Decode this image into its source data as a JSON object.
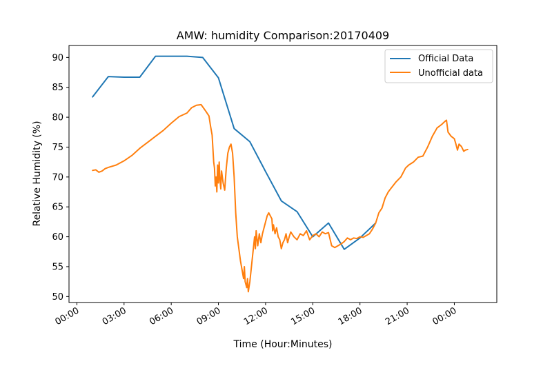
{
  "chart_data": {
    "type": "line",
    "title": "AMW: humidity Comparison:20170409",
    "xlabel": "Time (Hour:Minutes)",
    "ylabel": "Relative Humidity (%)",
    "xlim_hours": [
      -0.5,
      26.7
    ],
    "ylim": [
      49,
      92
    ],
    "grid": false,
    "legend_position": "top-right",
    "x_ticks": [
      {
        "hour": 0,
        "label": "00:00"
      },
      {
        "hour": 3,
        "label": "03:00"
      },
      {
        "hour": 6,
        "label": "06:00"
      },
      {
        "hour": 9,
        "label": "09:00"
      },
      {
        "hour": 12,
        "label": "12:00"
      },
      {
        "hour": 15,
        "label": "15:00"
      },
      {
        "hour": 18,
        "label": "18:00"
      },
      {
        "hour": 21,
        "label": "21:00"
      },
      {
        "hour": 24,
        "label": "00:00"
      }
    ],
    "y_ticks": [
      50,
      55,
      60,
      65,
      70,
      75,
      80,
      85,
      90
    ],
    "series": [
      {
        "name": "Official Data",
        "color": "#1f77b4",
        "points": [
          [
            1.0,
            83.4
          ],
          [
            2.0,
            86.8
          ],
          [
            3.0,
            86.7
          ],
          [
            4.0,
            86.7
          ],
          [
            5.0,
            90.2
          ],
          [
            6.0,
            90.2
          ],
          [
            7.0,
            90.2
          ],
          [
            8.0,
            90.0
          ],
          [
            9.0,
            86.6
          ],
          [
            10.0,
            78.1
          ],
          [
            11.0,
            75.9
          ],
          [
            12.0,
            70.9
          ],
          [
            13.0,
            66.0
          ],
          [
            14.0,
            64.2
          ],
          [
            15.0,
            60.0
          ],
          [
            16.0,
            62.3
          ],
          [
            17.0,
            57.9
          ],
          [
            18.0,
            59.8
          ],
          [
            19.0,
            62.3
          ]
        ]
      },
      {
        "name": "Unofficial data",
        "color": "#ff7f0e",
        "points": [
          [
            1.0,
            71.1
          ],
          [
            1.2,
            71.2
          ],
          [
            1.4,
            70.8
          ],
          [
            1.6,
            71.0
          ],
          [
            1.8,
            71.4
          ],
          [
            2.0,
            71.6
          ],
          [
            2.5,
            72.0
          ],
          [
            3.0,
            72.7
          ],
          [
            3.5,
            73.6
          ],
          [
            4.0,
            74.8
          ],
          [
            4.5,
            75.8
          ],
          [
            5.0,
            76.8
          ],
          [
            5.5,
            77.8
          ],
          [
            6.0,
            79.0
          ],
          [
            6.5,
            80.1
          ],
          [
            7.0,
            80.7
          ],
          [
            7.3,
            81.6
          ],
          [
            7.6,
            82.0
          ],
          [
            7.9,
            82.1
          ],
          [
            8.2,
            81.0
          ],
          [
            8.4,
            80.2
          ],
          [
            8.5,
            78.5
          ],
          [
            8.6,
            77.0
          ],
          [
            8.7,
            72.5
          ],
          [
            8.75,
            71.5
          ],
          [
            8.8,
            68.5
          ],
          [
            8.85,
            70.0
          ],
          [
            8.9,
            67.5
          ],
          [
            8.95,
            72.0
          ],
          [
            9.0,
            69.0
          ],
          [
            9.05,
            72.5
          ],
          [
            9.1,
            69.5
          ],
          [
            9.15,
            68.0
          ],
          [
            9.2,
            71.0
          ],
          [
            9.3,
            69.0
          ],
          [
            9.4,
            67.8
          ],
          [
            9.5,
            71.5
          ],
          [
            9.6,
            74.0
          ],
          [
            9.7,
            75.0
          ],
          [
            9.8,
            75.5
          ],
          [
            9.9,
            74.0
          ],
          [
            10.0,
            70.0
          ],
          [
            10.1,
            64.0
          ],
          [
            10.2,
            60.0
          ],
          [
            10.3,
            58.0
          ],
          [
            10.4,
            56.0
          ],
          [
            10.5,
            54.5
          ],
          [
            10.6,
            53.0
          ],
          [
            10.65,
            55.0
          ],
          [
            10.7,
            52.5
          ],
          [
            10.8,
            51.5
          ],
          [
            10.85,
            53.0
          ],
          [
            10.9,
            50.8
          ],
          [
            11.0,
            52.5
          ],
          [
            11.1,
            55.0
          ],
          [
            11.2,
            57.5
          ],
          [
            11.3,
            60.0
          ],
          [
            11.35,
            58.0
          ],
          [
            11.4,
            61.0
          ],
          [
            11.5,
            58.5
          ],
          [
            11.6,
            60.5
          ],
          [
            11.7,
            59.0
          ],
          [
            11.8,
            60.5
          ],
          [
            11.9,
            61.5
          ],
          [
            12.0,
            62.5
          ],
          [
            12.1,
            63.5
          ],
          [
            12.2,
            64.0
          ],
          [
            12.3,
            63.5
          ],
          [
            12.4,
            63.0
          ],
          [
            12.45,
            61.0
          ],
          [
            12.5,
            62.0
          ],
          [
            12.6,
            60.5
          ],
          [
            12.7,
            61.5
          ],
          [
            12.8,
            60.0
          ],
          [
            12.9,
            59.5
          ],
          [
            13.0,
            58.0
          ],
          [
            13.1,
            59.0
          ],
          [
            13.2,
            59.5
          ],
          [
            13.3,
            60.5
          ],
          [
            13.4,
            59.0
          ],
          [
            13.5,
            60.0
          ],
          [
            13.6,
            60.8
          ],
          [
            13.8,
            60.0
          ],
          [
            14.0,
            59.5
          ],
          [
            14.2,
            60.5
          ],
          [
            14.4,
            60.2
          ],
          [
            14.6,
            61.0
          ],
          [
            14.8,
            59.5
          ],
          [
            15.0,
            60.2
          ],
          [
            15.2,
            60.5
          ],
          [
            15.4,
            60.0
          ],
          [
            15.6,
            60.8
          ],
          [
            15.8,
            60.5
          ],
          [
            16.0,
            60.7
          ],
          [
            16.2,
            58.5
          ],
          [
            16.4,
            58.2
          ],
          [
            16.6,
            58.5
          ],
          [
            16.8,
            58.8
          ],
          [
            17.0,
            59.2
          ],
          [
            17.2,
            59.8
          ],
          [
            17.4,
            59.5
          ],
          [
            17.6,
            59.8
          ],
          [
            17.8,
            59.7
          ],
          [
            18.0,
            60.0
          ],
          [
            18.2,
            59.9
          ],
          [
            18.4,
            60.2
          ],
          [
            18.6,
            60.5
          ],
          [
            18.8,
            61.3
          ],
          [
            19.0,
            62.3
          ],
          [
            19.2,
            64.0
          ],
          [
            19.4,
            64.8
          ],
          [
            19.6,
            66.5
          ],
          [
            19.8,
            67.5
          ],
          [
            20.0,
            68.2
          ],
          [
            20.3,
            69.2
          ],
          [
            20.6,
            70.0
          ],
          [
            20.9,
            71.5
          ],
          [
            21.1,
            72.0
          ],
          [
            21.4,
            72.5
          ],
          [
            21.7,
            73.3
          ],
          [
            22.0,
            73.5
          ],
          [
            22.3,
            75.0
          ],
          [
            22.6,
            76.8
          ],
          [
            22.9,
            78.2
          ],
          [
            23.2,
            78.8
          ],
          [
            23.4,
            79.3
          ],
          [
            23.5,
            79.5
          ],
          [
            23.6,
            77.5
          ],
          [
            23.8,
            76.8
          ],
          [
            24.0,
            76.4
          ],
          [
            24.1,
            75.5
          ],
          [
            24.2,
            74.5
          ],
          [
            24.3,
            75.5
          ],
          [
            24.45,
            75.1
          ],
          [
            24.6,
            74.3
          ],
          [
            24.7,
            74.5
          ],
          [
            24.85,
            74.6
          ]
        ]
      }
    ]
  }
}
